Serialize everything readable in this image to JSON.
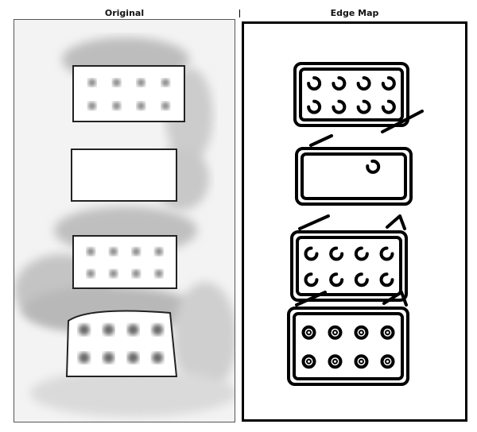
{
  "window": {
    "panels": [
      {
        "id": "original",
        "title": "Original"
      },
      {
        "id": "edge",
        "title": "Edge Map"
      }
    ]
  },
  "content": {
    "original": {
      "objects": [
        {
          "kind": "domino-tile",
          "dots": 8
        },
        {
          "kind": "blank-tile",
          "dots": 0
        },
        {
          "kind": "domino-tile",
          "dots": 8
        },
        {
          "kind": "domino-tile",
          "dots": 8
        }
      ]
    },
    "edge_map": {
      "objects": [
        {
          "kind": "outlined-tile",
          "dots": 8
        },
        {
          "kind": "outlined-tile",
          "dots": 1
        },
        {
          "kind": "outlined-tile",
          "dots": 8
        },
        {
          "kind": "outlined-tile",
          "dots": 8
        }
      ]
    }
  },
  "colors": {
    "panel_bg": "#f0f0f0",
    "edge_bg": "#ffffff",
    "ink": "#000000",
    "tile_fill": "#ffffff",
    "dot_fill": "#777777"
  }
}
